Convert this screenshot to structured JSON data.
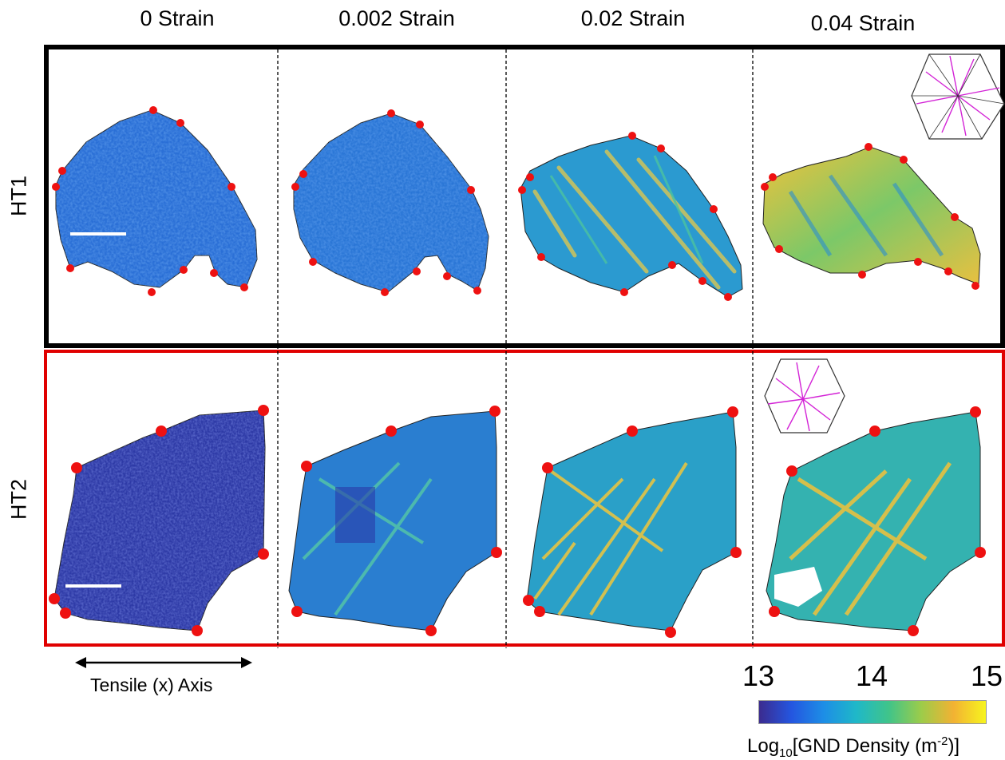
{
  "columns": [
    "0 Strain",
    "0.002 Strain",
    "0.02 Strain",
    "0.04 Strain"
  ],
  "rows": [
    "HT1",
    "HT2"
  ],
  "axis": {
    "label": "Tensile (x) Axis"
  },
  "colorbar": {
    "ticks": [
      "13",
      "14",
      "15"
    ],
    "title_prefix": "Log",
    "title_sub": "10",
    "title_main": "[GND Density (m",
    "title_sup": "-2",
    "title_suffix": ")]",
    "stops": [
      "#3b2b8f",
      "#2456e0",
      "#1d8ee6",
      "#1fb8c8",
      "#40c48a",
      "#9ccc4a",
      "#f2b233",
      "#f7f41e"
    ]
  },
  "colors": {
    "ht1_frame": "#000000",
    "ht2_frame": "#e00000",
    "marker": "#ee1111"
  }
}
